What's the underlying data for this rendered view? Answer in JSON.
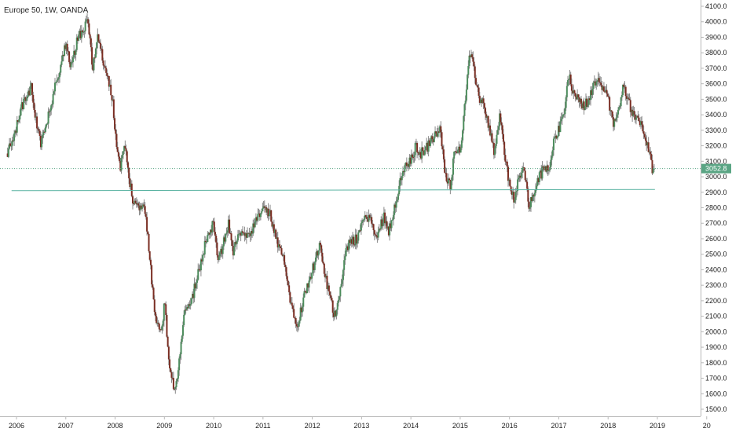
{
  "legend": {
    "text": "Europe 50, 1W, OANDA"
  },
  "colors": {
    "up": "#4c8c5c",
    "down": "#7a2d22",
    "wick": "#888888",
    "last_line": "#5aa584",
    "support_line": "#5ab3a2",
    "axis_text": "#222222",
    "axis_line": "#b8b8b8",
    "badge_bg": "#5aa584",
    "badge_text": "#ffffff"
  },
  "chart_data": {
    "type": "candlestick",
    "title": "Europe 50, 1W, OANDA",
    "xlabel": "",
    "ylabel": "",
    "grid": false,
    "ylim": [
      1500,
      4100
    ],
    "xlim": [
      2005.8,
      2020.0
    ],
    "x_ticks": [
      "2006",
      "2007",
      "2008",
      "2009",
      "2010",
      "2011",
      "2012",
      "2013",
      "2014",
      "2015",
      "2016",
      "2017",
      "2018",
      "2019",
      "20"
    ],
    "y_ticks": [
      "4100.0",
      "4000.0",
      "3900.0",
      "3800.0",
      "3700.0",
      "3600.0",
      "3500.0",
      "3400.0",
      "3300.0",
      "3200.0",
      "3100.0",
      "3000.0",
      "2900.0",
      "2800.0",
      "2700.0",
      "2600.0",
      "2500.0",
      "2400.0",
      "2300.0",
      "2200.0",
      "2100.0",
      "2000.0",
      "1900.0",
      "1800.0",
      "1700.0",
      "1600.0",
      "1500.0"
    ],
    "last_price": 3052.8,
    "last_price_label": "3052.8",
    "support_level": 2910,
    "support_range": [
      2005.9,
      2018.95
    ],
    "price_path": [
      [
        2005.8,
        3150
      ],
      [
        2005.95,
        3250
      ],
      [
        2006.1,
        3450
      ],
      [
        2006.3,
        3580
      ],
      [
        2006.4,
        3350
      ],
      [
        2006.5,
        3200
      ],
      [
        2006.65,
        3400
      ],
      [
        2006.8,
        3600
      ],
      [
        2007.0,
        3850
      ],
      [
        2007.1,
        3700
      ],
      [
        2007.25,
        3900
      ],
      [
        2007.45,
        4000
      ],
      [
        2007.55,
        3700
      ],
      [
        2007.65,
        3900
      ],
      [
        2007.8,
        3700
      ],
      [
        2007.95,
        3500
      ],
      [
        2008.0,
        3300
      ],
      [
        2008.1,
        3050
      ],
      [
        2008.2,
        3200
      ],
      [
        2008.35,
        2850
      ],
      [
        2008.5,
        2800
      ],
      [
        2008.6,
        2800
      ],
      [
        2008.7,
        2500
      ],
      [
        2008.8,
        2100
      ],
      [
        2008.95,
        2000
      ],
      [
        2009.0,
        2200
      ],
      [
        2009.1,
        1800
      ],
      [
        2009.2,
        1600
      ],
      [
        2009.3,
        1800
      ],
      [
        2009.4,
        2100
      ],
      [
        2009.55,
        2200
      ],
      [
        2009.7,
        2400
      ],
      [
        2009.85,
        2600
      ],
      [
        2010.0,
        2700
      ],
      [
        2010.1,
        2450
      ],
      [
        2010.3,
        2700
      ],
      [
        2010.4,
        2500
      ],
      [
        2010.5,
        2650
      ],
      [
        2010.7,
        2600
      ],
      [
        2010.85,
        2700
      ],
      [
        2011.0,
        2800
      ],
      [
        2011.15,
        2750
      ],
      [
        2011.3,
        2550
      ],
      [
        2011.45,
        2450
      ],
      [
        2011.55,
        2200
      ],
      [
        2011.7,
        2050
      ],
      [
        2011.85,
        2250
      ],
      [
        2012.0,
        2400
      ],
      [
        2012.15,
        2550
      ],
      [
        2012.3,
        2300
      ],
      [
        2012.45,
        2100
      ],
      [
        2012.55,
        2250
      ],
      [
        2012.7,
        2550
      ],
      [
        2012.9,
        2600
      ],
      [
        2013.0,
        2700
      ],
      [
        2013.15,
        2750
      ],
      [
        2013.3,
        2600
      ],
      [
        2013.45,
        2750
      ],
      [
        2013.55,
        2650
      ],
      [
        2013.7,
        2850
      ],
      [
        2013.85,
        3050
      ],
      [
        2014.0,
        3100
      ],
      [
        2014.1,
        3200
      ],
      [
        2014.2,
        3150
      ],
      [
        2014.35,
        3200
      ],
      [
        2014.45,
        3250
      ],
      [
        2014.6,
        3300
      ],
      [
        2014.7,
        3000
      ],
      [
        2014.8,
        2950
      ],
      [
        2014.9,
        3200
      ],
      [
        2015.0,
        3150
      ],
      [
        2015.1,
        3500
      ],
      [
        2015.2,
        3800
      ],
      [
        2015.3,
        3650
      ],
      [
        2015.4,
        3500
      ],
      [
        2015.5,
        3450
      ],
      [
        2015.6,
        3300
      ],
      [
        2015.7,
        3150
      ],
      [
        2015.8,
        3400
      ],
      [
        2015.9,
        3150
      ],
      [
        2016.0,
        2950
      ],
      [
        2016.1,
        2850
      ],
      [
        2016.2,
        3000
      ],
      [
        2016.3,
        3050
      ],
      [
        2016.4,
        2800
      ],
      [
        2016.5,
        2900
      ],
      [
        2016.6,
        3000
      ],
      [
        2016.7,
        3050
      ],
      [
        2016.8,
        3050
      ],
      [
        2016.9,
        3250
      ],
      [
        2017.0,
        3300
      ],
      [
        2017.1,
        3400
      ],
      [
        2017.2,
        3650
      ],
      [
        2017.3,
        3550
      ],
      [
        2017.5,
        3450
      ],
      [
        2017.6,
        3500
      ],
      [
        2017.8,
        3650
      ],
      [
        2018.0,
        3500
      ],
      [
        2018.1,
        3350
      ],
      [
        2018.2,
        3400
      ],
      [
        2018.3,
        3600
      ],
      [
        2018.4,
        3500
      ],
      [
        2018.5,
        3400
      ],
      [
        2018.65,
        3350
      ],
      [
        2018.8,
        3200
      ],
      [
        2018.9,
        3050
      ],
      [
        2018.95,
        3052
      ]
    ]
  }
}
